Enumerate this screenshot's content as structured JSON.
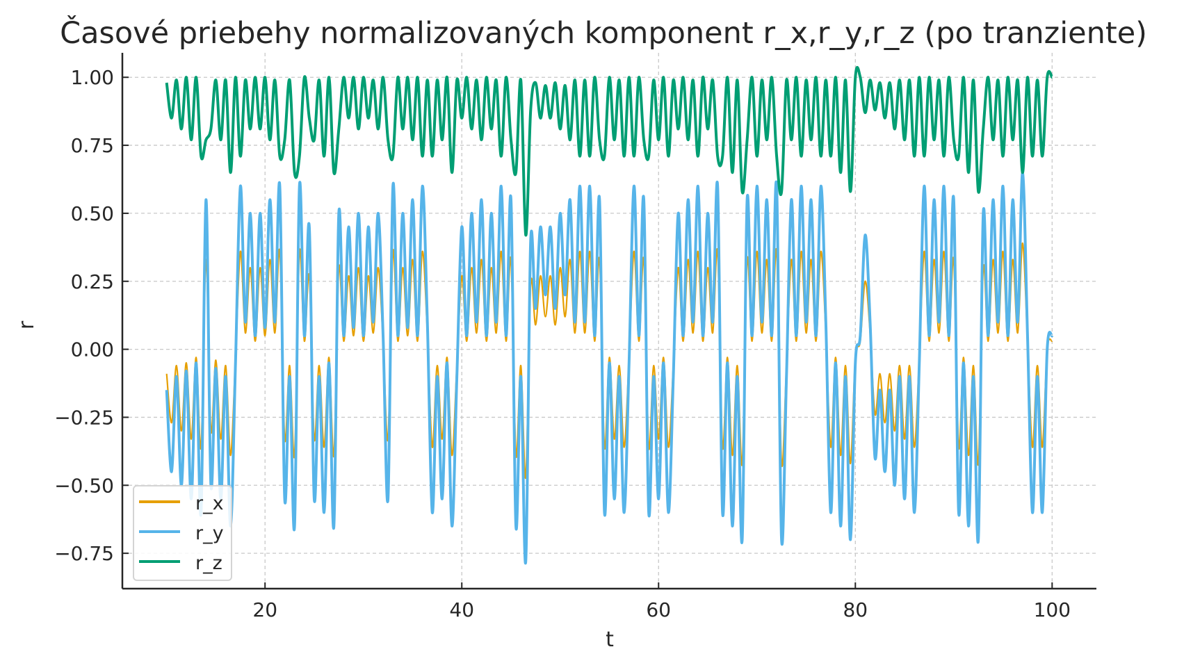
{
  "chart_data": {
    "type": "line",
    "title": "Časové priebehy normalizovaných komponent r_x,r_y,r_z (po tranziente)",
    "xlabel": "t",
    "ylabel": "r",
    "xlim": [
      5.5,
      104.5
    ],
    "ylim": [
      -0.88,
      1.09
    ],
    "xticks": [
      20,
      40,
      60,
      80,
      100
    ],
    "xtick_labels": [
      "20",
      "40",
      "60",
      "80",
      "100"
    ],
    "yticks": [
      1.0,
      0.75,
      0.5,
      0.25,
      0.0,
      -0.25,
      -0.5,
      -0.75
    ],
    "ytick_labels": [
      "1.00",
      "0.75",
      "0.50",
      "0.25",
      "0.00",
      "−0.25",
      "−0.50",
      "−0.75"
    ],
    "grid": true,
    "grid_style": "dashed",
    "legend_placement": "lower-left",
    "t_range": [
      10,
      100
    ],
    "t_step": 0.5,
    "series": [
      {
        "name": "r_x",
        "color": "#E69F00",
        "values": [
          -0.09,
          -0.27,
          -0.06,
          -0.3,
          -0.05,
          -0.33,
          -0.03,
          -0.36,
          0.33,
          -0.3,
          -0.04,
          -0.33,
          -0.06,
          -0.39,
          -0.03,
          0.36,
          0.06,
          0.3,
          0.03,
          0.3,
          0.05,
          0.33,
          0.06,
          0.36,
          -0.33,
          -0.06,
          -0.39,
          0.36,
          0.03,
          0.27,
          -0.33,
          -0.06,
          -0.36,
          -0.03,
          -0.39,
          0.3,
          0.03,
          0.27,
          0.05,
          0.3,
          0.03,
          0.27,
          0.06,
          0.3,
          0.03,
          -0.33,
          0.36,
          0.03,
          0.3,
          0.05,
          0.33,
          0.03,
          0.36,
          0.06,
          -0.36,
          -0.06,
          -0.33,
          -0.03,
          -0.39,
          -0.06,
          0.27,
          0.03,
          0.3,
          0.06,
          0.33,
          0.03,
          0.3,
          0.06,
          0.36,
          0.03,
          0.33,
          -0.39,
          -0.06,
          -0.47,
          0.24,
          0.09,
          0.27,
          0.12,
          0.27,
          0.09,
          0.3,
          0.12,
          0.33,
          0.06,
          0.36,
          0.06,
          0.36,
          0.03,
          0.33,
          -0.36,
          -0.03,
          -0.33,
          -0.06,
          -0.36,
          -0.03,
          0.36,
          0.03,
          0.33,
          -0.36,
          -0.06,
          -0.33,
          -0.03,
          -0.36,
          -0.06,
          0.3,
          0.03,
          0.33,
          0.06,
          0.36,
          0.03,
          0.3,
          0.06,
          0.36,
          -0.36,
          -0.03,
          -0.39,
          -0.06,
          -0.42,
          0.33,
          0.03,
          0.36,
          0.06,
          0.33,
          0.03,
          0.36,
          -0.42,
          -0.06,
          0.33,
          0.03,
          0.36,
          0.06,
          0.33,
          0.03,
          0.36,
          0.06,
          -0.36,
          -0.03,
          -0.39,
          -0.06,
          -0.42,
          -0.03,
          0.03,
          0.25,
          0.06,
          -0.24,
          -0.09,
          -0.27,
          -0.09,
          -0.3,
          -0.06,
          -0.33,
          -0.06,
          -0.36,
          -0.03,
          0.36,
          0.03,
          0.33,
          0.06,
          0.36,
          0.03,
          0.33,
          -0.36,
          -0.03,
          -0.39,
          -0.06,
          -0.42,
          0.3,
          0.03,
          0.33,
          0.06,
          0.36,
          0.03,
          0.33,
          0.06,
          0.39,
          0.03,
          -0.36,
          -0.06,
          -0.36,
          0.0,
          0.03
        ]
      },
      {
        "name": "r_y",
        "color": "#56B4E9",
        "values": [
          -0.15,
          -0.45,
          -0.1,
          -0.5,
          -0.08,
          -0.55,
          -0.05,
          -0.6,
          0.55,
          -0.5,
          -0.07,
          -0.55,
          -0.1,
          -0.65,
          -0.05,
          0.6,
          0.1,
          0.5,
          0.05,
          0.5,
          0.08,
          0.55,
          0.1,
          0.6,
          -0.55,
          -0.1,
          -0.65,
          0.6,
          0.05,
          0.45,
          -0.55,
          -0.1,
          -0.6,
          -0.05,
          -0.65,
          0.5,
          0.05,
          0.45,
          0.08,
          0.5,
          0.05,
          0.45,
          0.1,
          0.5,
          0.05,
          -0.55,
          0.6,
          0.05,
          0.5,
          0.08,
          0.55,
          0.05,
          0.6,
          0.1,
          -0.6,
          -0.1,
          -0.55,
          -0.05,
          -0.65,
          -0.1,
          0.45,
          0.05,
          0.5,
          0.1,
          0.55,
          0.05,
          0.5,
          0.1,
          0.6,
          0.05,
          0.55,
          -0.65,
          -0.1,
          -0.78,
          0.4,
          0.15,
          0.45,
          0.2,
          0.45,
          0.15,
          0.5,
          0.2,
          0.55,
          0.1,
          0.6,
          0.1,
          0.6,
          0.05,
          0.55,
          -0.6,
          -0.05,
          -0.55,
          -0.1,
          -0.6,
          -0.05,
          0.6,
          0.05,
          0.55,
          -0.6,
          -0.1,
          -0.55,
          -0.05,
          -0.6,
          -0.1,
          0.5,
          0.05,
          0.55,
          0.1,
          0.6,
          0.05,
          0.5,
          0.1,
          0.6,
          -0.6,
          -0.05,
          -0.65,
          -0.1,
          -0.7,
          0.55,
          0.05,
          0.6,
          0.1,
          0.55,
          0.05,
          0.6,
          -0.7,
          -0.1,
          0.55,
          0.05,
          0.6,
          0.1,
          0.55,
          0.05,
          0.6,
          0.1,
          -0.6,
          -0.05,
          -0.65,
          -0.1,
          -0.7,
          -0.05,
          0.05,
          0.42,
          0.1,
          -0.4,
          -0.15,
          -0.45,
          -0.15,
          -0.5,
          -0.1,
          -0.55,
          -0.1,
          -0.6,
          -0.05,
          0.6,
          0.05,
          0.55,
          0.1,
          0.6,
          0.05,
          0.55,
          -0.6,
          -0.05,
          -0.65,
          -0.1,
          -0.7,
          0.5,
          0.05,
          0.55,
          0.1,
          0.6,
          0.05,
          0.55,
          0.1,
          0.65,
          0.05,
          -0.6,
          -0.1,
          -0.6,
          0.0,
          0.05
        ]
      },
      {
        "name": "r_z",
        "color": "#009E73",
        "values": [
          0.98,
          0.85,
          0.99,
          0.81,
          1.0,
          0.77,
          1.0,
          0.71,
          0.77,
          0.81,
          0.99,
          0.77,
          0.99,
          0.65,
          1.0,
          0.71,
          0.99,
          0.81,
          1.0,
          0.81,
          1.0,
          0.77,
          0.99,
          0.71,
          0.77,
          0.99,
          0.65,
          0.71,
          1.0,
          0.85,
          0.77,
          0.99,
          0.71,
          1.0,
          0.65,
          0.81,
          1.0,
          0.85,
          1.0,
          0.81,
          1.0,
          0.85,
          0.99,
          0.81,
          1.0,
          0.77,
          0.71,
          1.0,
          0.81,
          1.0,
          0.77,
          1.0,
          0.71,
          0.99,
          0.71,
          0.99,
          0.77,
          1.0,
          0.65,
          0.99,
          0.85,
          1.0,
          0.81,
          0.99,
          0.77,
          1.0,
          0.81,
          0.99,
          0.71,
          1.0,
          0.77,
          0.65,
          0.99,
          0.42,
          0.88,
          0.98,
          0.85,
          0.97,
          0.85,
          0.98,
          0.81,
          0.97,
          0.77,
          0.99,
          0.71,
          0.99,
          0.71,
          1.0,
          0.77,
          0.71,
          1.0,
          0.77,
          0.99,
          0.71,
          1.0,
          0.71,
          1.0,
          0.77,
          0.71,
          0.99,
          0.77,
          1.0,
          0.71,
          0.99,
          0.81,
          1.0,
          0.77,
          0.99,
          0.71,
          1.0,
          0.81,
          0.99,
          0.71,
          0.71,
          1.0,
          0.65,
          0.99,
          0.58,
          0.77,
          1.0,
          0.71,
          0.99,
          0.77,
          1.0,
          0.71,
          0.58,
          0.99,
          0.77,
          1.0,
          0.71,
          0.99,
          0.77,
          1.0,
          0.71,
          0.99,
          0.71,
          1.0,
          0.65,
          0.99,
          0.58,
          1.0,
          1.0,
          0.87,
          0.99,
          0.88,
          0.98,
          0.85,
          0.98,
          0.81,
          0.99,
          0.77,
          0.99,
          0.71,
          1.0,
          0.71,
          1.0,
          0.77,
          0.99,
          0.71,
          1.0,
          0.77,
          0.71,
          1.0,
          0.65,
          0.99,
          0.58,
          0.81,
          1.0,
          0.77,
          0.99,
          0.71,
          1.0,
          0.77,
          0.99,
          0.65,
          1.0,
          0.71,
          0.99,
          0.71,
          1.0,
          1.0
        ]
      }
    ]
  }
}
